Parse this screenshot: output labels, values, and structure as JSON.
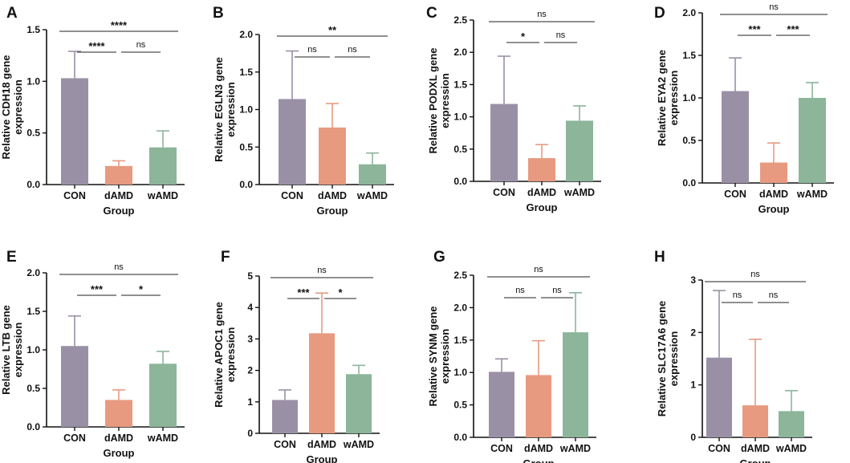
{
  "colors": {
    "CON": "#9a90a6",
    "dAMD": "#e79a80",
    "wAMD": "#8cb59a",
    "axis": "#111111",
    "bracket": "#222222"
  },
  "chart_data": [
    {
      "type": "bar",
      "panel": "A",
      "ylabel": "Relative CDH18 gene expression",
      "xlabel": "Group",
      "categories": [
        "CON",
        "dAMD",
        "wAMD"
      ],
      "values": [
        1.03,
        0.18,
        0.36
      ],
      "errors": [
        0.26,
        0.05,
        0.16
      ],
      "ylim": [
        0,
        1.5
      ],
      "yticks": [
        "0.0",
        "0.5",
        "1.0",
        "1.5"
      ],
      "comparisons": [
        {
          "from": 0,
          "to": 1,
          "label": "****",
          "level": 0
        },
        {
          "from": 1,
          "to": 2,
          "label": "ns",
          "level": 0
        },
        {
          "from": 0,
          "to": 2,
          "label": "****",
          "level": 1
        }
      ]
    },
    {
      "type": "bar",
      "panel": "B",
      "ylabel": "Relative EGLN3 gene expression",
      "xlabel": "Group",
      "categories": [
        "CON",
        "dAMD",
        "wAMD"
      ],
      "values": [
        1.14,
        0.76,
        0.27
      ],
      "errors": [
        0.64,
        0.32,
        0.15
      ],
      "ylim": [
        0,
        2.0
      ],
      "yticks": [
        "0.0",
        "0.5",
        "1.0",
        "1.5",
        "2.0"
      ],
      "comparisons": [
        {
          "from": 0,
          "to": 1,
          "label": "ns",
          "level": 0
        },
        {
          "from": 1,
          "to": 2,
          "label": "ns",
          "level": 0
        },
        {
          "from": 0,
          "to": 2,
          "label": "**",
          "level": 1
        }
      ]
    },
    {
      "type": "bar",
      "panel": "C",
      "ylabel": "Relative PODXL gene expression",
      "xlabel": "Group",
      "categories": [
        "CON",
        "dAMD",
        "wAMD"
      ],
      "values": [
        1.2,
        0.36,
        0.94
      ],
      "errors": [
        0.74,
        0.21,
        0.23
      ],
      "ylim": [
        0,
        2.5
      ],
      "yticks": [
        "0.0",
        "0.5",
        "1.0",
        "1.5",
        "2.0",
        "2.5"
      ],
      "comparisons": [
        {
          "from": 0,
          "to": 1,
          "label": "*",
          "level": 0
        },
        {
          "from": 1,
          "to": 2,
          "label": "ns",
          "level": 0
        },
        {
          "from": 0,
          "to": 2,
          "label": "ns",
          "level": 1
        }
      ]
    },
    {
      "type": "bar",
      "panel": "D",
      "ylabel": "Relative EYA2 gene expression",
      "xlabel": "Group",
      "categories": [
        "CON",
        "dAMD",
        "wAMD"
      ],
      "values": [
        1.08,
        0.24,
        1.0
      ],
      "errors": [
        0.39,
        0.23,
        0.18
      ],
      "ylim": [
        0,
        2.0
      ],
      "yticks": [
        "0.0",
        "0.5",
        "1.0",
        "1.5",
        "2.0"
      ],
      "comparisons": [
        {
          "from": 0,
          "to": 1,
          "label": "***",
          "level": 0
        },
        {
          "from": 1,
          "to": 2,
          "label": "***",
          "level": 0
        },
        {
          "from": 0,
          "to": 2,
          "label": "ns",
          "level": 1
        }
      ]
    },
    {
      "type": "bar",
      "panel": "E",
      "ylabel": "Relative LTB gene expression",
      "xlabel": "Group",
      "categories": [
        "CON",
        "dAMD",
        "wAMD"
      ],
      "values": [
        1.05,
        0.35,
        0.82
      ],
      "errors": [
        0.39,
        0.13,
        0.16
      ],
      "ylim": [
        0,
        2.0
      ],
      "yticks": [
        "0.0",
        "0.5",
        "1.0",
        "1.5",
        "2.0"
      ],
      "comparisons": [
        {
          "from": 0,
          "to": 1,
          "label": "***",
          "level": 0
        },
        {
          "from": 1,
          "to": 2,
          "label": "*",
          "level": 0
        },
        {
          "from": 0,
          "to": 2,
          "label": "ns",
          "level": 1
        }
      ]
    },
    {
      "type": "bar",
      "panel": "F",
      "ylabel": "Relative APOC1 gene expression",
      "xlabel": "Group",
      "categories": [
        "CON",
        "dAMD",
        "wAMD"
      ],
      "values": [
        1.06,
        3.18,
        1.88
      ],
      "errors": [
        0.32,
        1.28,
        0.28
      ],
      "ylim": [
        0,
        5
      ],
      "yticks": [
        "0",
        "1",
        "2",
        "3",
        "4",
        "5"
      ],
      "comparisons": [
        {
          "from": 0,
          "to": 1,
          "label": "***",
          "level": 0
        },
        {
          "from": 1,
          "to": 2,
          "label": "*",
          "level": 0
        },
        {
          "from": 0,
          "to": 2,
          "label": "ns",
          "level": 1
        }
      ]
    },
    {
      "type": "bar",
      "panel": "G",
      "ylabel": "Relative SYNM gene expression",
      "xlabel": "Group",
      "categories": [
        "CON",
        "dAMD",
        "wAMD"
      ],
      "values": [
        1.01,
        0.96,
        1.62
      ],
      "errors": [
        0.2,
        0.53,
        0.61
      ],
      "ylim": [
        0,
        2.5
      ],
      "yticks": [
        "0.0",
        "0.5",
        "1.0",
        "1.5",
        "2.0",
        "2.5"
      ],
      "comparisons": [
        {
          "from": 0,
          "to": 1,
          "label": "ns",
          "level": 0
        },
        {
          "from": 1,
          "to": 2,
          "label": "ns",
          "level": 0
        },
        {
          "from": 0,
          "to": 2,
          "label": "ns",
          "level": 1
        }
      ]
    },
    {
      "type": "bar",
      "panel": "H",
      "ylabel": "Relative SLC17A6 gene expression",
      "xlabel": "Group",
      "categories": [
        "CON",
        "dAMD",
        "wAMD"
      ],
      "values": [
        1.52,
        0.61,
        0.5
      ],
      "errors": [
        1.28,
        1.26,
        0.39
      ],
      "ylim": [
        0,
        3
      ],
      "yticks": [
        "0",
        "1",
        "2",
        "3"
      ],
      "comparisons": [
        {
          "from": 0,
          "to": 1,
          "label": "ns",
          "level": 0
        },
        {
          "from": 1,
          "to": 2,
          "label": "ns",
          "level": 0
        },
        {
          "from": 0,
          "to": 2,
          "label": "ns",
          "level": 1
        }
      ]
    }
  ]
}
